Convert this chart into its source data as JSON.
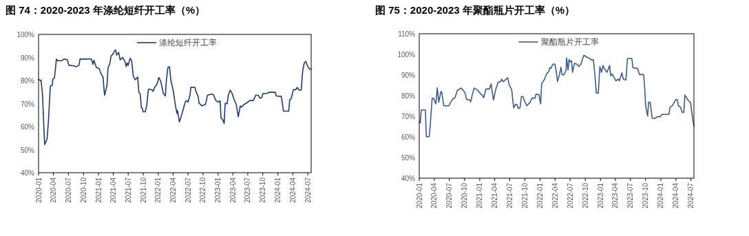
{
  "chart_data": [
    {
      "type": "line",
      "title": "图 74：2020-2023 年涤纶短纤开工率（%）",
      "legend": "top",
      "grid": false,
      "marker": "none",
      "line_style": "solid",
      "xlim": [
        "2020-01-01",
        "2024-07-22"
      ],
      "xticks": [
        "2020-01",
        "2020-04",
        "2020-07",
        "2020-10",
        "2021-01",
        "2021-04",
        "2021-07",
        "2021-10",
        "2022-01",
        "2022-04",
        "2022-07",
        "2022-10",
        "2023-01",
        "2023-04",
        "2023-07",
        "2023-10",
        "2024-01",
        "2024-04",
        "2024-07"
      ],
      "ylim": [
        40,
        100
      ],
      "yticks": [
        {
          "value": 40,
          "label": "40%"
        },
        {
          "value": 50,
          "label": "50%"
        },
        {
          "value": 60,
          "label": "60%"
        },
        {
          "value": 70,
          "label": "70%"
        },
        {
          "value": 80,
          "label": "80%"
        },
        {
          "value": 90,
          "label": "90%"
        },
        {
          "value": 100,
          "label": "100%"
        }
      ],
      "series": [
        {
          "name": "涤纶短纤开工率",
          "color": "#1f3a73",
          "x": [
            "2020-01-01",
            "2020-01-10",
            "2020-01-16",
            "2020-01-25",
            "2020-02-07",
            "2020-02-22",
            "2020-03-01",
            "2020-03-13",
            "2020-03-25",
            "2020-03-28",
            "2020-04-07",
            "2020-04-19",
            "2020-04-25",
            "2020-05-22",
            "2020-06-04",
            "2020-06-25",
            "2020-07-04",
            "2020-08-01",
            "2020-08-16",
            "2020-09-04",
            "2020-09-10",
            "2020-10-16",
            "2020-11-16",
            "2020-11-22",
            "2020-11-28",
            "2020-12-04",
            "2020-12-19",
            "2021-01-04",
            "2021-01-16",
            "2021-01-28",
            "2021-02-07",
            "2021-02-22",
            "2021-02-28",
            "2021-03-10",
            "2021-03-19",
            "2021-03-28",
            "2021-04-10",
            "2021-04-16",
            "2021-04-22",
            "2021-05-04",
            "2021-05-13",
            "2021-05-28",
            "2021-06-13",
            "2021-06-19",
            "2021-06-25",
            "2021-07-01",
            "2021-07-13",
            "2021-07-22",
            "2021-08-01",
            "2021-08-13",
            "2021-08-28",
            "2021-09-04",
            "2021-09-13",
            "2021-09-19",
            "2021-09-25",
            "2021-10-01",
            "2021-10-13",
            "2021-10-22",
            "2021-11-01",
            "2021-11-07",
            "2021-11-22",
            "2021-12-01",
            "2021-12-10",
            "2021-12-25",
            "2022-01-04",
            "2022-01-16",
            "2022-01-22",
            "2022-02-01",
            "2022-02-13",
            "2022-02-19",
            "2022-02-28",
            "2022-03-10",
            "2022-03-19",
            "2022-04-01",
            "2022-04-16",
            "2022-04-25",
            "2022-04-28",
            "2022-05-10",
            "2022-05-19",
            "2022-06-04",
            "2022-06-16",
            "2022-06-25",
            "2022-07-01",
            "2022-07-13",
            "2022-07-19",
            "2022-08-13",
            "2022-08-19",
            "2022-09-01",
            "2022-09-07",
            "2022-09-16",
            "2022-09-25",
            "2022-10-16",
            "2022-10-28",
            "2022-11-19",
            "2022-12-04",
            "2022-12-16",
            "2023-01-01",
            "2023-01-13",
            "2023-01-19",
            "2023-01-28",
            "2023-02-07",
            "2023-02-13",
            "2023-02-25",
            "2023-03-04",
            "2023-03-16",
            "2023-03-28",
            "2023-04-07",
            "2023-04-22",
            "2023-05-04",
            "2023-05-16",
            "2023-05-25",
            "2023-06-04",
            "2023-06-25",
            "2023-07-13",
            "2023-08-04",
            "2023-08-19",
            "2023-09-04",
            "2023-09-13",
            "2023-09-25",
            "2023-10-01",
            "2023-10-28",
            "2023-11-07",
            "2023-12-16",
            "2023-12-22",
            "2024-01-22",
            "2024-02-04",
            "2024-03-07",
            "2024-03-13",
            "2024-03-22",
            "2024-04-04",
            "2024-04-19",
            "2024-04-28",
            "2024-05-10",
            "2024-05-22",
            "2024-06-01",
            "2024-06-10",
            "2024-06-19",
            "2024-07-01",
            "2024-07-10",
            "2024-07-22"
          ],
          "values": [
            80.6,
            80,
            80.2,
            74,
            52.2,
            54.7,
            62,
            77.6,
            78,
            80.6,
            81,
            89.3,
            88.6,
            88.6,
            89.3,
            89,
            86.6,
            86.4,
            86,
            86.6,
            89.3,
            89.3,
            89.4,
            88.6,
            87,
            88.8,
            85.6,
            85.3,
            83,
            81.6,
            73.6,
            78,
            85.6,
            87,
            90.8,
            91.2,
            93,
            93.2,
            91,
            92.2,
            89,
            90,
            88,
            86,
            87.6,
            86.6,
            89.6,
            88.6,
            82,
            80.3,
            81.5,
            75,
            74,
            68.4,
            68,
            66.4,
            66.4,
            69,
            76,
            76.3,
            76,
            75.3,
            77.1,
            78.6,
            81.3,
            79.6,
            77.6,
            74.3,
            73.3,
            80,
            85.6,
            86,
            80,
            76,
            69,
            65.7,
            67,
            62,
            64,
            68,
            71,
            71.2,
            70.6,
            73.6,
            77.1,
            77,
            75.2,
            73.1,
            70.1,
            69.6,
            69,
            69.6,
            73.6,
            74.1,
            73.9,
            71.6,
            70.6,
            71.2,
            63.6,
            63.2,
            61.4,
            70.1,
            69.9,
            73.6,
            75.8,
            74.3,
            72.1,
            69.6,
            64.2,
            69,
            68.4,
            69.4,
            70.3,
            71.3,
            71.3,
            73.6,
            73.6,
            72.3,
            72.6,
            74.3,
            74.4,
            74.9,
            74.9,
            73.3,
            73.1,
            66.7,
            66.7,
            71.6,
            72.1,
            76,
            76,
            77,
            75.8,
            75.8,
            84.6,
            87.6,
            88.3,
            86.1,
            85.1,
            84.9
          ]
        }
      ]
    },
    {
      "type": "line",
      "title": "图 75：2020-2023 年聚酯瓶片开工率（%）",
      "legend": "top",
      "grid": false,
      "marker": "none",
      "line_style": "solid",
      "xlim": [
        "2020-01-01",
        "2024-07-19"
      ],
      "xticks": [
        "2020-01",
        "2020-04",
        "2020-07",
        "2020-10",
        "2021-01",
        "2021-04",
        "2021-07",
        "2021-10",
        "2022-01",
        "2022-04",
        "2022-07",
        "2022-10",
        "2023-01",
        "2023-04",
        "2023-07",
        "2023-10",
        "2024-01",
        "2024-04",
        "2024-07"
      ],
      "ylim": [
        40,
        110
      ],
      "yticks": [
        {
          "value": 40,
          "label": "40%"
        },
        {
          "value": 50,
          "label": "50%"
        },
        {
          "value": 60,
          "label": "60%"
        },
        {
          "value": 70,
          "label": "70%"
        },
        {
          "value": 80,
          "label": "80%"
        },
        {
          "value": 90,
          "label": "90%"
        },
        {
          "value": 100,
          "label": "100%"
        },
        {
          "value": 110,
          "label": "110%"
        }
      ],
      "series": [
        {
          "name": "聚酯瓶片开工率",
          "color": "#3b5a8c",
          "x": [
            "2020-01-01",
            "2020-01-07",
            "2020-01-13",
            "2020-01-16",
            "2020-02-07",
            "2020-02-13",
            "2020-03-01",
            "2020-03-07",
            "2020-03-19",
            "2020-03-28",
            "2020-04-10",
            "2020-04-19",
            "2020-04-28",
            "2020-05-10",
            "2020-05-16",
            "2020-05-28",
            "2020-06-28",
            "2020-07-19",
            "2020-08-04",
            "2020-08-19",
            "2020-08-28",
            "2020-09-10",
            "2020-09-19",
            "2020-10-04",
            "2020-10-13",
            "2020-11-01",
            "2020-11-07",
            "2020-11-16",
            "2020-11-28",
            "2020-12-19",
            "2021-01-01",
            "2021-01-16",
            "2021-01-25",
            "2021-02-07",
            "2021-02-28",
            "2021-03-10",
            "2021-03-25",
            "2021-04-07",
            "2021-04-22",
            "2021-05-07",
            "2021-05-13",
            "2021-05-22",
            "2021-06-01",
            "2021-06-19",
            "2021-06-28",
            "2021-07-13",
            "2021-07-25",
            "2021-08-04",
            "2021-08-13",
            "2021-08-22",
            "2021-09-01",
            "2021-09-10",
            "2021-09-19",
            "2021-09-28",
            "2021-10-13",
            "2021-11-01",
            "2021-11-13",
            "2021-12-01",
            "2021-12-07",
            "2021-12-25",
            "2022-01-04",
            "2022-01-10",
            "2022-01-28",
            "2022-02-10",
            "2022-02-22",
            "2022-02-28",
            "2022-03-07",
            "2022-03-19",
            "2022-04-01",
            "2022-04-10",
            "2022-04-16",
            "2022-04-28",
            "2022-05-07",
            "2022-05-13",
            "2022-05-25",
            "2022-06-07",
            "2022-06-10",
            "2022-06-19",
            "2022-06-25",
            "2022-07-01",
            "2022-07-10",
            "2022-07-16",
            "2022-07-28",
            "2022-08-13",
            "2022-08-22",
            "2022-09-04",
            "2022-09-22",
            "2022-10-13",
            "2022-10-28",
            "2022-11-07",
            "2022-11-19",
            "2022-11-28",
            "2022-12-07",
            "2022-12-19",
            "2022-12-28",
            "2023-01-07",
            "2023-01-16",
            "2023-01-25",
            "2023-02-10",
            "2023-02-25",
            "2023-03-04",
            "2023-03-13",
            "2023-03-22",
            "2023-04-04",
            "2023-04-19",
            "2023-04-25",
            "2023-05-10",
            "2023-05-19",
            "2023-06-04",
            "2023-06-13",
            "2023-07-10",
            "2023-07-16",
            "2023-08-13",
            "2023-08-25",
            "2023-09-19",
            "2023-09-25",
            "2023-10-01",
            "2023-10-13",
            "2023-10-19",
            "2023-10-28",
            "2023-11-10",
            "2023-11-28",
            "2023-12-10",
            "2023-12-28",
            "2024-01-07",
            "2024-02-19",
            "2024-02-25",
            "2024-03-10",
            "2024-03-19",
            "2024-04-01",
            "2024-04-10",
            "2024-04-16",
            "2024-04-28",
            "2024-05-10",
            "2024-05-19",
            "2024-05-25",
            "2024-06-04",
            "2024-06-13",
            "2024-06-22",
            "2024-06-28",
            "2024-07-10",
            "2024-07-19"
          ],
          "values": [
            67.3,
            66.8,
            72.9,
            73.1,
            73.1,
            60.1,
            60.1,
            65.1,
            78.7,
            78.7,
            76,
            83.8,
            76.8,
            81.8,
            81.8,
            75.1,
            75.1,
            78.2,
            79,
            82.7,
            82.9,
            83.7,
            82.9,
            81.3,
            78.2,
            77.9,
            77,
            80.2,
            83.7,
            82.7,
            81.3,
            80.2,
            79,
            83.2,
            83.2,
            85.7,
            77.9,
            82.9,
            86.5,
            86.8,
            88,
            86.8,
            87.4,
            88.7,
            85.2,
            82.9,
            74,
            75.7,
            75.7,
            73.8,
            74,
            79.6,
            79.6,
            77.4,
            75.1,
            76.8,
            78.8,
            78.8,
            80.7,
            80.5,
            76,
            85.7,
            88,
            90.7,
            91.6,
            93.5,
            93.2,
            95.2,
            95.2,
            90.7,
            86.8,
            90.2,
            93.7,
            90.2,
            90,
            92.4,
            98.3,
            92.4,
            97.6,
            96.3,
            96.9,
            91.3,
            95.7,
            95.2,
            94.1,
            95.2,
            99.6,
            98.5,
            98,
            97.2,
            97.4,
            90.2,
            81.3,
            81.3,
            94.1,
            91.3,
            94.6,
            93,
            91.3,
            94.6,
            89.6,
            90.5,
            89.1,
            87.2,
            88,
            87.2,
            91,
            88,
            87.6,
            98,
            98,
            93.5,
            93.2,
            90.2,
            90.2,
            84.1,
            75.1,
            70.1,
            76.8,
            76.8,
            69,
            69,
            69.8,
            69.8,
            70.9,
            70.9,
            74.3,
            75.1,
            76.3,
            78.2,
            77.9,
            75.1,
            74.5,
            71.8,
            72,
            80.2,
            79,
            77.9,
            77.1,
            76.8,
            69.6,
            65.1
          ]
        }
      ]
    }
  ]
}
